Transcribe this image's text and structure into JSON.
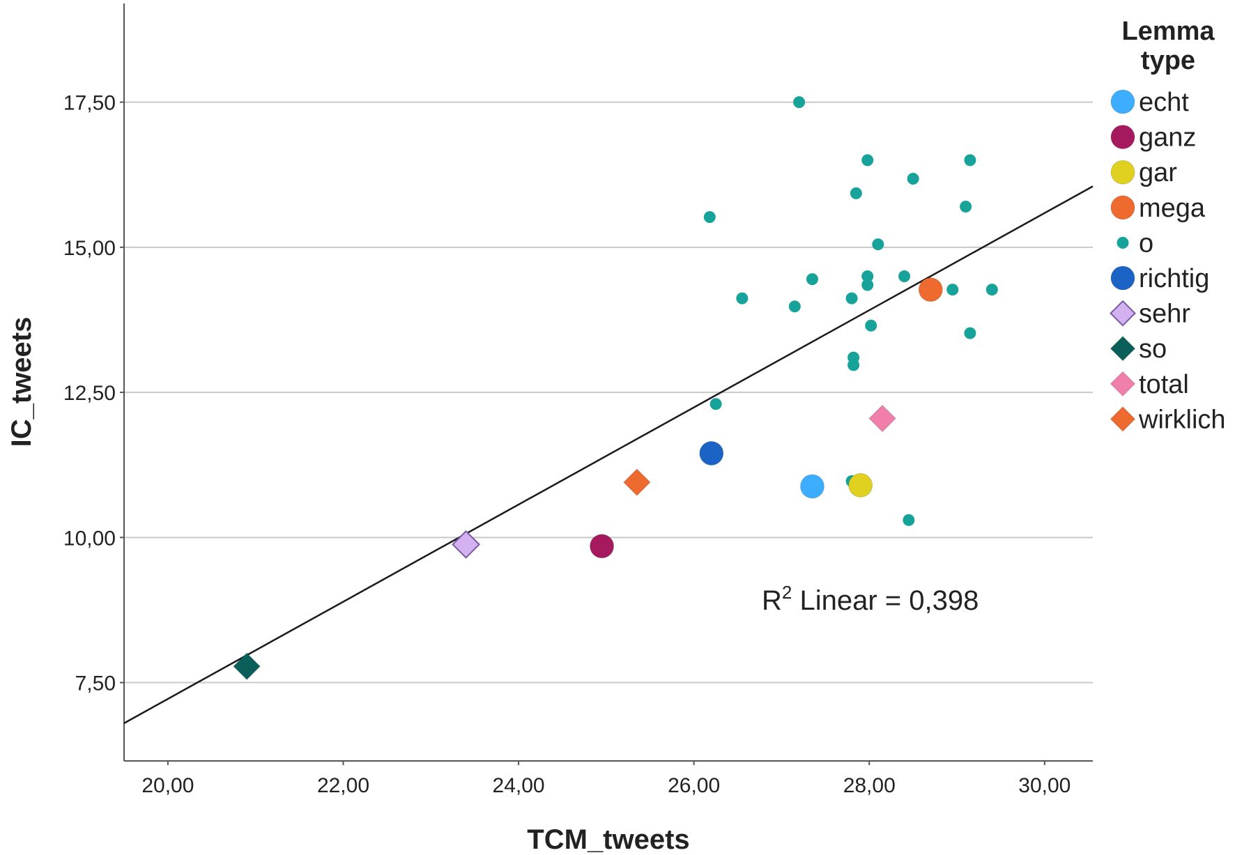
{
  "chart_data": {
    "type": "scatter",
    "title": "",
    "xlabel": "TCM_tweets",
    "ylabel": "IC_tweets",
    "xlim": [
      19.5,
      30.55
    ],
    "ylim": [
      6.15,
      19.2
    ],
    "x_ticks": [
      "20,00",
      "22,00",
      "24,00",
      "26,00",
      "28,00",
      "30,00"
    ],
    "x_tick_values": [
      20,
      22,
      24,
      26,
      28,
      30
    ],
    "y_ticks": [
      "7,50",
      "10,00",
      "12,50",
      "15,00",
      "17,50"
    ],
    "y_tick_values": [
      7.5,
      10,
      12.5,
      15,
      17.5
    ],
    "grid": "horizontal",
    "legend_title": "Lemma type",
    "legend_position": "right",
    "series": [
      {
        "name": "echt",
        "marker": "circle",
        "color": "#3daeff",
        "points": [
          [
            27.35,
            10.88
          ]
        ]
      },
      {
        "name": "ganz",
        "marker": "circle",
        "color": "#a51a5e",
        "points": [
          [
            24.95,
            9.85
          ]
        ]
      },
      {
        "name": "gar",
        "marker": "circle",
        "color": "#e0d020",
        "points": [
          [
            27.9,
            10.9
          ]
        ]
      },
      {
        "name": "mega",
        "marker": "circle",
        "color": "#ee6a2e",
        "points": [
          [
            28.7,
            14.27
          ]
        ]
      },
      {
        "name": "o",
        "marker": "dot",
        "color": "#17a39a",
        "points": [
          [
            27.2,
            17.5
          ],
          [
            27.98,
            16.5
          ],
          [
            29.15,
            16.5
          ],
          [
            28.5,
            16.18
          ],
          [
            27.85,
            15.93
          ],
          [
            29.1,
            15.7
          ],
          [
            26.18,
            15.52
          ],
          [
            28.1,
            15.05
          ],
          [
            27.35,
            14.45
          ],
          [
            27.98,
            14.5
          ],
          [
            28.4,
            14.5
          ],
          [
            27.98,
            14.35
          ],
          [
            28.95,
            14.27
          ],
          [
            29.4,
            14.27
          ],
          [
            26.55,
            14.12
          ],
          [
            27.8,
            14.12
          ],
          [
            27.15,
            13.98
          ],
          [
            28.02,
            13.65
          ],
          [
            29.15,
            13.52
          ],
          [
            27.82,
            13.1
          ],
          [
            27.82,
            12.97
          ],
          [
            26.25,
            12.3
          ],
          [
            27.8,
            10.97
          ],
          [
            28.45,
            10.3
          ]
        ]
      },
      {
        "name": "richtig",
        "marker": "circle",
        "color": "#1b63c4",
        "points": [
          [
            26.2,
            11.45
          ]
        ]
      },
      {
        "name": "sehr",
        "marker": "diamond",
        "color": "#d4b2f2",
        "points": [
          [
            23.4,
            9.88
          ]
        ]
      },
      {
        "name": "so",
        "marker": "diamond",
        "color": "#0b5f5a",
        "points": [
          [
            20.9,
            7.78
          ]
        ]
      },
      {
        "name": "total",
        "marker": "diamond",
        "color": "#f07fac",
        "points": [
          [
            28.15,
            12.05
          ]
        ]
      },
      {
        "name": "wirklich",
        "marker": "diamond",
        "color": "#ee6a2e",
        "points": [
          [
            25.35,
            10.95
          ]
        ]
      }
    ],
    "fit_line": {
      "type": "linear",
      "points": [
        [
          19.5,
          6.8
        ],
        [
          30.55,
          16.05
        ]
      ]
    },
    "annotation": {
      "prefix": "R",
      "superscript": "2",
      "text": " Linear = 0,398"
    }
  }
}
